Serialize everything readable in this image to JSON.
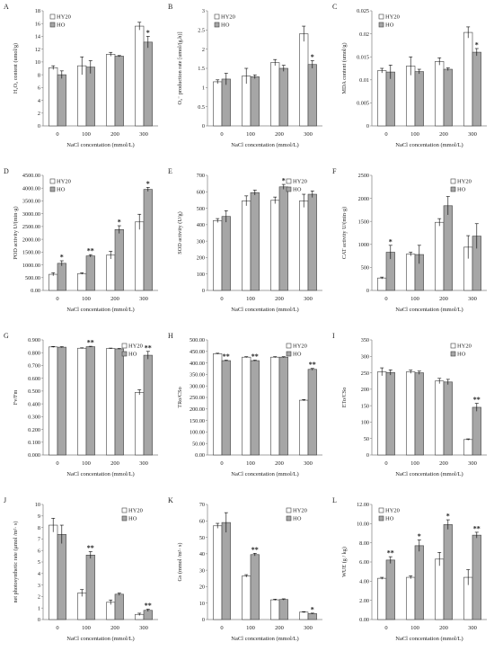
{
  "colors": {
    "hy20": "#ffffff",
    "ho": "#a6a6a6",
    "edge": "#404040",
    "axis": "#808080"
  },
  "chart_data": [
    {
      "type": "bar",
      "panel_letter": "A",
      "ylabel": "H₂O₂ content (umol/g)",
      "xlabel": "NaCl concentation (mmol/L)",
      "categories": [
        "0",
        "100",
        "200",
        "300"
      ],
      "ylim": [
        0,
        18
      ],
      "yticks": [
        "0",
        "2",
        "4",
        "6",
        "8",
        "10",
        "12",
        "14",
        "16",
        "18"
      ],
      "legend_position": "top-left",
      "series": [
        {
          "name": "HY20",
          "values": [
            9.1,
            9.4,
            11.2,
            15.6
          ],
          "errors": [
            0.3,
            1.4,
            0.3,
            0.6
          ]
        },
        {
          "name": "HO",
          "values": [
            8.0,
            9.2,
            10.9,
            13.1
          ],
          "errors": [
            0.6,
            1.0,
            0.1,
            0.9
          ]
        }
      ],
      "annotations": [
        {
          "series": 1,
          "category": 3,
          "text": "*"
        }
      ]
    },
    {
      "type": "bar",
      "panel_letter": "B",
      "ylabel": "O₂⁻ production rate [umol/(g.h)]",
      "xlabel": "NaCl concentation (mmol/L)",
      "categories": [
        "0",
        "100",
        "200",
        "300"
      ],
      "ylim": [
        0,
        3
      ],
      "yticks": [
        "0",
        "0.5",
        "1",
        "1.5",
        "2",
        "2.5",
        "3"
      ],
      "legend_position": "top-left",
      "series": [
        {
          "name": "HY20",
          "values": [
            1.15,
            1.3,
            1.65,
            2.4
          ],
          "errors": [
            0.05,
            0.2,
            0.08,
            0.2
          ]
        },
        {
          "name": "HO",
          "values": [
            1.22,
            1.28,
            1.5,
            1.6
          ],
          "errors": [
            0.15,
            0.05,
            0.08,
            0.1
          ]
        }
      ],
      "annotations": [
        {
          "series": 1,
          "category": 3,
          "text": "*"
        }
      ]
    },
    {
      "type": "bar",
      "panel_letter": "C",
      "ylabel": "MDA content (umol/g)",
      "xlabel": "NaCl concentation (mmol/L)",
      "categories": [
        "0",
        "100",
        "200",
        "300"
      ],
      "ylim": [
        0,
        0.025
      ],
      "yticks": [
        "0",
        "0.005",
        "0.01",
        "0.015",
        "0.02",
        "0.025"
      ],
      "legend_position": "top-left",
      "series": [
        {
          "name": "HY20",
          "values": [
            0.012,
            0.013,
            0.014,
            0.0203
          ],
          "errors": [
            0.0005,
            0.002,
            0.0008,
            0.0012
          ]
        },
        {
          "name": "HO",
          "values": [
            0.0117,
            0.0118,
            0.0123,
            0.016
          ],
          "errors": [
            0.0015,
            0.0005,
            0.0003,
            0.0008
          ]
        }
      ],
      "annotations": [
        {
          "series": 1,
          "category": 3,
          "text": "*"
        }
      ]
    },
    {
      "type": "bar",
      "panel_letter": "D",
      "ylabel": "POD activity U/(min·g)",
      "xlabel": "NaCl concentation (mmol/L)",
      "categories": [
        "0",
        "100",
        "200",
        "300"
      ],
      "ylim": [
        0,
        4500
      ],
      "yticks": [
        "0.00",
        "500.00",
        "1000.00",
        "1500.00",
        "2000.00",
        "2500.00",
        "3000.00",
        "3500.00",
        "4000.00",
        "4500.00"
      ],
      "legend_position": "top-left",
      "series": [
        {
          "name": "HY20",
          "values": [
            630,
            660,
            1380,
            2680
          ],
          "errors": [
            60,
            30,
            150,
            300
          ]
        },
        {
          "name": "HO",
          "values": [
            1060,
            1350,
            2380,
            3950
          ],
          "errors": [
            100,
            50,
            150,
            80
          ]
        }
      ],
      "annotations": [
        {
          "series": 1,
          "category": 0,
          "text": "*"
        },
        {
          "series": 1,
          "category": 1,
          "text": "**"
        },
        {
          "series": 1,
          "category": 2,
          "text": "*"
        },
        {
          "series": 1,
          "category": 3,
          "text": "*"
        }
      ]
    },
    {
      "type": "bar",
      "panel_letter": "E",
      "ylabel": "SOD activity (U/g)",
      "xlabel": "NaCl concentation (mmol/L)",
      "categories": [
        "0",
        "100",
        "200",
        "300"
      ],
      "ylim": [
        0,
        700
      ],
      "yticks": [
        "0",
        "100",
        "200",
        "300",
        "400",
        "500",
        "600",
        "700"
      ],
      "legend_position": "top-right",
      "series": [
        {
          "name": "HY20",
          "values": [
            425,
            545,
            548,
            545
          ],
          "errors": [
            12,
            30,
            20,
            40
          ]
        },
        {
          "name": "HO",
          "values": [
            450,
            595,
            630,
            585
          ],
          "errors": [
            35,
            15,
            15,
            20
          ]
        }
      ],
      "annotations": [
        {
          "series": 1,
          "category": 2,
          "text": "*"
        }
      ]
    },
    {
      "type": "bar",
      "panel_letter": "F",
      "ylabel": "CAT activity U/(min·g)",
      "xlabel": "NaCl concentation (mmol/L)",
      "categories": [
        "0",
        "100",
        "200",
        "300"
      ],
      "ylim": [
        0,
        2500
      ],
      "yticks": [
        "0",
        "500",
        "1000",
        "1500",
        "2000",
        "2500"
      ],
      "legend_position": "top-right",
      "series": [
        {
          "name": "HY20",
          "values": [
            270,
            790,
            1480,
            940
          ],
          "errors": [
            20,
            40,
            80,
            250
          ]
        },
        {
          "name": "HO",
          "values": [
            830,
            780,
            1840,
            1180
          ],
          "errors": [
            150,
            200,
            200,
            270
          ]
        }
      ],
      "annotations": [
        {
          "series": 1,
          "category": 0,
          "text": "*"
        }
      ]
    },
    {
      "type": "bar",
      "panel_letter": "G",
      "ylabel": "Fv/Fm",
      "xlabel": "NaCl concentation (mmol/L)",
      "categories": [
        "0",
        "100",
        "200",
        "300"
      ],
      "ylim": [
        0,
        0.9
      ],
      "yticks": [
        "0.000",
        "0.100",
        "0.200",
        "0.300",
        "0.400",
        "0.500",
        "0.600",
        "0.700",
        "0.800",
        "0.900"
      ],
      "legend_position": "top-right",
      "series": [
        {
          "name": "HY20",
          "values": [
            0.845,
            0.835,
            0.833,
            0.49
          ],
          "errors": [
            0.004,
            0.003,
            0.003,
            0.02
          ]
        },
        {
          "name": "HO",
          "values": [
            0.843,
            0.847,
            0.83,
            0.78
          ],
          "errors": [
            0.004,
            0.003,
            0.003,
            0.03
          ]
        }
      ],
      "annotations": [
        {
          "series": 1,
          "category": 1,
          "text": "**"
        },
        {
          "series": 1,
          "category": 3,
          "text": "**"
        }
      ]
    },
    {
      "type": "bar",
      "panel_letter": "H",
      "ylabel": "TRo/CSo",
      "xlabel": "NaCl concentation (mmol/L)",
      "categories": [
        "0",
        "100",
        "200",
        "300"
      ],
      "ylim": [
        0,
        500
      ],
      "yticks": [
        "0.00",
        "50.00",
        "100.00",
        "150.00",
        "200.00",
        "250.00",
        "300.00",
        "350.00",
        "400.00",
        "450.00",
        "500.00"
      ],
      "legend_position": "top-right",
      "series": [
        {
          "name": "HY20",
          "values": [
            440,
            425,
            425,
            238
          ],
          "errors": [
            2,
            2,
            2,
            3
          ]
        },
        {
          "name": "HO",
          "values": [
            410,
            410,
            425,
            372
          ],
          "errors": [
            2,
            2,
            2,
            4
          ]
        }
      ],
      "annotations": [
        {
          "series": 1,
          "category": 0,
          "text": "**"
        },
        {
          "series": 1,
          "category": 1,
          "text": "**"
        },
        {
          "series": 1,
          "category": 3,
          "text": "**"
        }
      ]
    },
    {
      "type": "bar",
      "panel_letter": "I",
      "ylabel": "ETo/CSo",
      "xlabel": "NaCl concentation (mmol/L)",
      "categories": [
        "0",
        "100",
        "200",
        "300"
      ],
      "ylim": [
        0,
        350
      ],
      "yticks": [
        "0",
        "50",
        "100",
        "150",
        "200",
        "250",
        "300",
        "350"
      ],
      "legend_position": "top-right",
      "series": [
        {
          "name": "HY20",
          "values": [
            253,
            253,
            225,
            47
          ],
          "errors": [
            12,
            5,
            8,
            2
          ]
        },
        {
          "name": "HO",
          "values": [
            251,
            250,
            222,
            145
          ],
          "errors": [
            8,
            5,
            8,
            12
          ]
        }
      ],
      "annotations": [
        {
          "series": 1,
          "category": 3,
          "text": "**"
        }
      ]
    },
    {
      "type": "bar",
      "panel_letter": "J",
      "ylabel": "net photosynthetic rate (μmol /m²· s)",
      "xlabel": "NaCl concentation (mmol/L)",
      "categories": [
        "0",
        "100",
        "200",
        "300"
      ],
      "ylim": [
        0,
        10
      ],
      "yticks": [
        "0",
        "1",
        "2",
        "3",
        "4",
        "5",
        "6",
        "7",
        "8",
        "9",
        "10"
      ],
      "legend_position": "top-right",
      "series": [
        {
          "name": "HY20",
          "values": [
            8.2,
            2.3,
            1.5,
            0.45
          ],
          "errors": [
            0.6,
            0.3,
            0.2,
            0.1
          ]
        },
        {
          "name": "HO",
          "values": [
            7.4,
            5.6,
            2.2,
            0.8
          ],
          "errors": [
            0.8,
            0.3,
            0.1,
            0.1
          ]
        }
      ],
      "annotations": [
        {
          "series": 1,
          "category": 1,
          "text": "**"
        },
        {
          "series": 1,
          "category": 3,
          "text": "**"
        }
      ]
    },
    {
      "type": "bar",
      "panel_letter": "K",
      "ylabel": "Gs (mmol /m²· s)",
      "xlabel": "NaCl concentation (mmol/L)",
      "categories": [
        "0",
        "100",
        "200",
        "300"
      ],
      "ylim": [
        0,
        70
      ],
      "yticks": [
        "0",
        "10",
        "20",
        "30",
        "40",
        "50",
        "60",
        "70"
      ],
      "legend_position": "top-right",
      "series": [
        {
          "name": "HY20",
          "values": [
            57,
            26.5,
            12,
            4.5
          ],
          "errors": [
            1.5,
            0.8,
            0.4,
            0.3
          ]
        },
        {
          "name": "HO",
          "values": [
            59,
            39.5,
            12.2,
            3.6
          ],
          "errors": [
            6,
            0.8,
            0.4,
            0.3
          ]
        }
      ],
      "annotations": [
        {
          "series": 1,
          "category": 1,
          "text": "**"
        },
        {
          "series": 1,
          "category": 3,
          "text": "*"
        }
      ]
    },
    {
      "type": "bar",
      "panel_letter": "L",
      "ylabel": "WUE (g / kg)",
      "xlabel": "NaCl concentation (mmol/L)",
      "categories": [
        "0",
        "100",
        "200",
        "300"
      ],
      "ylim": [
        0,
        12
      ],
      "yticks": [
        "0.00",
        "2.00",
        "4.00",
        "6.00",
        "8.00",
        "10.00",
        "12.00"
      ],
      "legend_position": "top-left",
      "series": [
        {
          "name": "HY20",
          "values": [
            4.3,
            4.4,
            6.3,
            4.4
          ],
          "errors": [
            0.1,
            0.15,
            0.7,
            0.8
          ]
        },
        {
          "name": "HO",
          "values": [
            6.2,
            7.7,
            9.9,
            8.8
          ],
          "errors": [
            0.35,
            0.6,
            0.5,
            0.3
          ]
        }
      ],
      "annotations": [
        {
          "series": 1,
          "category": 0,
          "text": "**"
        },
        {
          "series": 1,
          "category": 1,
          "text": "*"
        },
        {
          "series": 1,
          "category": 2,
          "text": "*"
        },
        {
          "series": 1,
          "category": 3,
          "text": "**"
        }
      ]
    }
  ]
}
